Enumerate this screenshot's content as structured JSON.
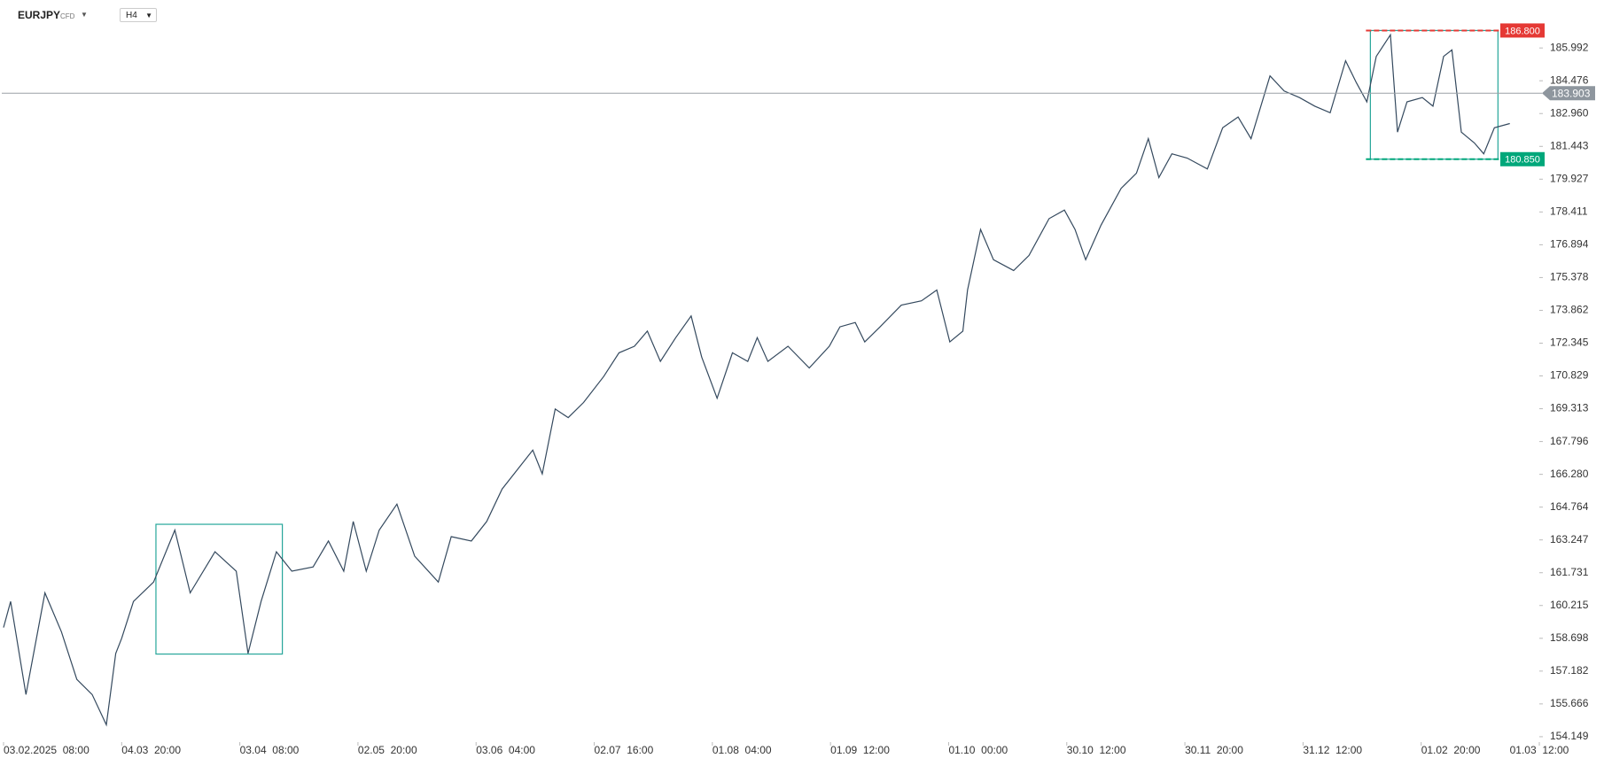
{
  "chart_data": {
    "type": "line",
    "symbol": "EURJPY",
    "instrument_type": "CFD",
    "timeframe": "H4",
    "color": "#34495e",
    "x": [
      0,
      0.06,
      0.19,
      0.35,
      0.49,
      0.62,
      0.75,
      0.87,
      0.95,
      1.0,
      1.1,
      1.27,
      1.45,
      1.58,
      1.79,
      1.97,
      2.07,
      2.18,
      2.31,
      2.44,
      2.62,
      2.75,
      2.88,
      2.96,
      3.07,
      3.18,
      3.33,
      3.48,
      3.68,
      3.79,
      3.96,
      4.09,
      4.22,
      4.35,
      4.48,
      4.56,
      4.67,
      4.78,
      4.91,
      5.08,
      5.21,
      5.34,
      5.45,
      5.56,
      5.69,
      5.82,
      5.91,
      6.04,
      6.17,
      6.3,
      6.38,
      6.47,
      6.64,
      6.82,
      6.99,
      7.08,
      7.21,
      7.29,
      7.42,
      7.6,
      7.77,
      7.9,
      8.01,
      8.12,
      8.16,
      8.27,
      8.38,
      8.55,
      8.68,
      8.85,
      8.98,
      9.07,
      9.16,
      9.29,
      9.46,
      9.59,
      9.69,
      9.78,
      9.89,
      10.02,
      10.19,
      10.32,
      10.45,
      10.56,
      10.72,
      10.84,
      10.97,
      11.1,
      11.23,
      11.36,
      11.45,
      11.54,
      11.62,
      11.74,
      11.8,
      11.88,
      12.01,
      12.1,
      12.19,
      12.26,
      12.34,
      12.45,
      12.53,
      12.62,
      12.75
    ],
    "values": [
      159.2,
      160.4,
      156.1,
      160.8,
      159,
      156.8,
      156.1,
      154.7,
      158,
      158.7,
      160.4,
      161.3,
      163.7,
      160.8,
      162.7,
      161.8,
      158,
      160.4,
      162.7,
      161.8,
      162,
      163.2,
      161.8,
      164.1,
      161.8,
      163.7,
      164.9,
      162.5,
      161.3,
      163.4,
      163.2,
      164.1,
      165.6,
      166.5,
      167.4,
      166.3,
      169.3,
      168.9,
      169.6,
      170.8,
      171.9,
      172.2,
      172.9,
      171.5,
      172.6,
      173.6,
      171.7,
      169.8,
      171.9,
      171.5,
      172.6,
      171.5,
      172.2,
      171.2,
      172.2,
      173.1,
      173.3,
      172.4,
      173.1,
      174.1,
      174.3,
      174.8,
      172.4,
      172.9,
      174.8,
      177.6,
      176.2,
      175.7,
      176.4,
      178.1,
      178.5,
      177.6,
      176.2,
      177.8,
      179.5,
      180.2,
      181.8,
      180,
      181.1,
      180.9,
      180.4,
      182.3,
      182.8,
      181.8,
      184.7,
      184,
      183.7,
      183.3,
      183,
      185.4,
      184.4,
      183.5,
      185.6,
      186.6,
      182.1,
      183.5,
      183.7,
      183.3,
      185.6,
      185.9,
      182.1,
      181.6,
      181.1,
      182.3,
      182.5
    ],
    "xlim": [
      -0.03,
      13.0
    ],
    "xticks": [
      {
        "value": 0,
        "label": "03.02.2025  08:00"
      },
      {
        "value": 1,
        "label": "04.03  20:00"
      },
      {
        "value": 2,
        "label": "03.04  08:00"
      },
      {
        "value": 3,
        "label": "02.05  20:00"
      },
      {
        "value": 4,
        "label": "03.06  04:00"
      },
      {
        "value": 5,
        "label": "02.07  16:00"
      },
      {
        "value": 6,
        "label": "01.08  04:00"
      },
      {
        "value": 7,
        "label": "01.09  12:00"
      },
      {
        "value": 8,
        "label": "01.10  00:00"
      },
      {
        "value": 9,
        "label": "30.10  12:00"
      },
      {
        "value": 10,
        "label": "30.11  20:00"
      },
      {
        "value": 11,
        "label": "31.12  12:00"
      },
      {
        "value": 12,
        "label": "01.02  20:00"
      },
      {
        "value": 13,
        "label": "01.03  12:00"
      }
    ],
    "ylim": [
      153.9,
      188.21
    ],
    "yticks": [
      154.149,
      155.666,
      157.182,
      158.698,
      160.215,
      161.731,
      163.247,
      164.764,
      {
        "value": 166.28,
        "label": "166.280"
      },
      167.796,
      169.313,
      170.829,
      172.345,
      173.862,
      175.378,
      176.894,
      178.411,
      179.927,
      181.443,
      {
        "value": 182.96,
        "label": "182.960"
      },
      184.476,
      185.992
    ],
    "current_price": 183.903,
    "levels": [
      {
        "value": 186.8,
        "label": "186.800",
        "color": "#e53935"
      },
      {
        "value": 180.85,
        "label": "180.850",
        "color": "#00a77a"
      }
    ],
    "boxes": [
      {
        "x": [
          1.29,
          2.36
        ],
        "y": [
          157.97,
          163.97
        ],
        "color": "#26a69a"
      },
      {
        "x": [
          11.57,
          12.65
        ],
        "y": [
          180.85,
          186.8
        ],
        "color": "#26a69a"
      }
    ]
  }
}
